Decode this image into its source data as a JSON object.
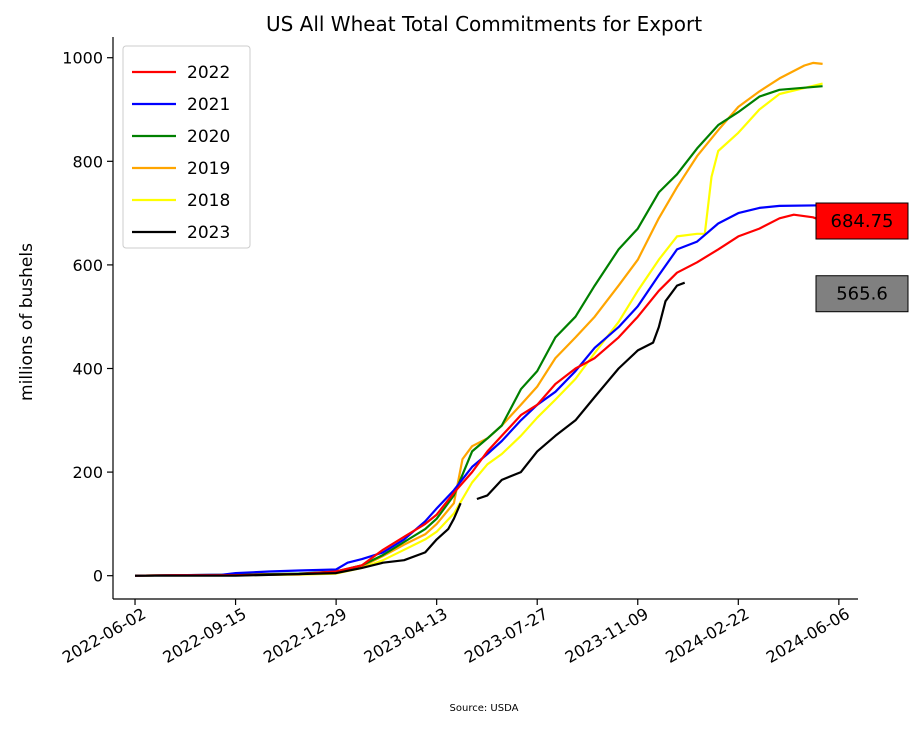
{
  "chart_data": {
    "type": "line",
    "title": "US All Wheat Total Commitments for Export",
    "ylabel": "millions of bushels",
    "xlabel": "",
    "source": "Source: USDA",
    "ylim": [
      -45,
      1040
    ],
    "xlim": [
      "2022-05-10",
      "2024-06-26"
    ],
    "grid": false,
    "legend_position": "top-left",
    "x_ticks": [
      "2022-06-02",
      "2022-09-15",
      "2022-12-29",
      "2023-04-13",
      "2023-07-27",
      "2023-11-09",
      "2024-02-22",
      "2024-06-06"
    ],
    "y_ticks": [
      0,
      200,
      400,
      600,
      800,
      1000
    ],
    "series": [
      {
        "name": "2022",
        "color": "#ff0000",
        "points": [
          [
            "2022-06-02",
            0
          ],
          [
            "2022-07-14",
            1
          ],
          [
            "2022-09-15",
            1
          ],
          [
            "2022-11-20",
            3
          ],
          [
            "2022-12-29",
            8
          ],
          [
            "2023-01-25",
            20
          ],
          [
            "2023-02-16",
            50
          ],
          [
            "2023-03-10",
            75
          ],
          [
            "2023-04-01",
            100
          ],
          [
            "2023-04-13",
            118
          ],
          [
            "2023-05-01",
            160
          ],
          [
            "2023-05-20",
            200
          ],
          [
            "2023-06-05",
            240
          ],
          [
            "2023-06-20",
            270
          ],
          [
            "2023-07-10",
            310
          ],
          [
            "2023-07-27",
            330
          ],
          [
            "2023-08-15",
            370
          ],
          [
            "2023-09-05",
            400
          ],
          [
            "2023-09-25",
            420
          ],
          [
            "2023-10-20",
            460
          ],
          [
            "2023-11-09",
            500
          ],
          [
            "2023-12-01",
            550
          ],
          [
            "2023-12-20",
            585
          ],
          [
            "2024-01-10",
            605
          ],
          [
            "2024-02-01",
            630
          ],
          [
            "2024-02-22",
            655
          ],
          [
            "2024-03-15",
            670
          ],
          [
            "2024-04-05",
            690
          ],
          [
            "2024-04-20",
            697
          ],
          [
            "2024-05-10",
            692
          ],
          [
            "2024-05-20",
            684.75
          ]
        ]
      },
      {
        "name": "2021",
        "color": "#0000ff",
        "points": [
          [
            "2022-06-02",
            0
          ],
          [
            "2022-07-14",
            1
          ],
          [
            "2022-09-01",
            2
          ],
          [
            "2022-09-15",
            5
          ],
          [
            "2022-10-20",
            8
          ],
          [
            "2022-11-20",
            10
          ],
          [
            "2022-12-29",
            12
          ],
          [
            "2023-01-10",
            25
          ],
          [
            "2023-01-25",
            32
          ],
          [
            "2023-02-16",
            45
          ],
          [
            "2023-03-10",
            70
          ],
          [
            "2023-04-01",
            105
          ],
          [
            "2023-04-13",
            130
          ],
          [
            "2023-05-01",
            165
          ],
          [
            "2023-05-20",
            210
          ],
          [
            "2023-06-05",
            235
          ],
          [
            "2023-06-20",
            260
          ],
          [
            "2023-07-10",
            300
          ],
          [
            "2023-07-27",
            330
          ],
          [
            "2023-08-15",
            355
          ],
          [
            "2023-09-05",
            395
          ],
          [
            "2023-09-25",
            440
          ],
          [
            "2023-10-20",
            480
          ],
          [
            "2023-11-09",
            520
          ],
          [
            "2023-12-01",
            580
          ],
          [
            "2023-12-20",
            630
          ],
          [
            "2024-01-10",
            645
          ],
          [
            "2024-02-01",
            680
          ],
          [
            "2024-02-22",
            700
          ],
          [
            "2024-03-15",
            710
          ],
          [
            "2024-04-05",
            714
          ],
          [
            "2024-05-20",
            715
          ]
        ]
      },
      {
        "name": "2020",
        "color": "#008000",
        "points": [
          [
            "2022-06-02",
            0
          ],
          [
            "2022-07-14",
            1
          ],
          [
            "2022-09-15",
            2
          ],
          [
            "2022-11-20",
            4
          ],
          [
            "2022-12-29",
            8
          ],
          [
            "2023-01-25",
            20
          ],
          [
            "2023-02-16",
            40
          ],
          [
            "2023-03-10",
            65
          ],
          [
            "2023-04-01",
            90
          ],
          [
            "2023-04-13",
            110
          ],
          [
            "2023-05-01",
            155
          ],
          [
            "2023-05-20",
            240
          ],
          [
            "2023-06-05",
            265
          ],
          [
            "2023-06-20",
            290
          ],
          [
            "2023-07-10",
            360
          ],
          [
            "2023-07-27",
            395
          ],
          [
            "2023-08-15",
            460
          ],
          [
            "2023-09-05",
            500
          ],
          [
            "2023-09-25",
            560
          ],
          [
            "2023-10-20",
            630
          ],
          [
            "2023-11-09",
            670
          ],
          [
            "2023-12-01",
            740
          ],
          [
            "2023-12-20",
            775
          ],
          [
            "2024-01-10",
            825
          ],
          [
            "2024-02-01",
            870
          ],
          [
            "2024-02-22",
            895
          ],
          [
            "2024-03-15",
            925
          ],
          [
            "2024-04-05",
            938
          ],
          [
            "2024-05-20",
            945
          ]
        ]
      },
      {
        "name": "2019",
        "color": "#ffa500",
        "points": [
          [
            "2022-06-02",
            0
          ],
          [
            "2022-07-14",
            1
          ],
          [
            "2022-09-15",
            2
          ],
          [
            "2022-11-20",
            3
          ],
          [
            "2022-12-29",
            6
          ],
          [
            "2023-01-25",
            18
          ],
          [
            "2023-02-16",
            38
          ],
          [
            "2023-03-10",
            60
          ],
          [
            "2023-04-01",
            80
          ],
          [
            "2023-04-13",
            100
          ],
          [
            "2023-05-01",
            140
          ],
          [
            "2023-05-10",
            225
          ],
          [
            "2023-05-20",
            250
          ],
          [
            "2023-06-05",
            265
          ],
          [
            "2023-06-20",
            290
          ],
          [
            "2023-07-10",
            330
          ],
          [
            "2023-07-27",
            365
          ],
          [
            "2023-08-15",
            420
          ],
          [
            "2023-09-05",
            460
          ],
          [
            "2023-09-25",
            500
          ],
          [
            "2023-10-20",
            560
          ],
          [
            "2023-11-09",
            610
          ],
          [
            "2023-12-01",
            690
          ],
          [
            "2023-12-20",
            750
          ],
          [
            "2024-01-10",
            810
          ],
          [
            "2024-02-01",
            860
          ],
          [
            "2024-02-22",
            905
          ],
          [
            "2024-03-15",
            935
          ],
          [
            "2024-04-05",
            960
          ],
          [
            "2024-05-01",
            985
          ],
          [
            "2024-05-10",
            990
          ],
          [
            "2024-05-20",
            988
          ]
        ]
      },
      {
        "name": "2018",
        "color": "#ffff00",
        "points": [
          [
            "2022-06-02",
            0
          ],
          [
            "2022-07-14",
            1
          ],
          [
            "2022-09-15",
            1
          ],
          [
            "2022-11-20",
            2
          ],
          [
            "2022-12-29",
            4
          ],
          [
            "2023-01-25",
            15
          ],
          [
            "2023-02-16",
            30
          ],
          [
            "2023-03-10",
            50
          ],
          [
            "2023-04-01",
            70
          ],
          [
            "2023-04-13",
            85
          ],
          [
            "2023-05-01",
            120
          ],
          [
            "2023-05-20",
            180
          ],
          [
            "2023-06-05",
            215
          ],
          [
            "2023-06-20",
            235
          ],
          [
            "2023-07-10",
            270
          ],
          [
            "2023-07-27",
            305
          ],
          [
            "2023-08-15",
            340
          ],
          [
            "2023-09-05",
            380
          ],
          [
            "2023-09-25",
            430
          ],
          [
            "2023-10-20",
            490
          ],
          [
            "2023-11-09",
            550
          ],
          [
            "2023-12-01",
            610
          ],
          [
            "2023-12-20",
            655
          ],
          [
            "2024-01-10",
            660
          ],
          [
            "2024-01-18",
            660
          ],
          [
            "2024-01-25",
            770
          ],
          [
            "2024-02-01",
            820
          ],
          [
            "2024-02-22",
            855
          ],
          [
            "2024-03-15",
            900
          ],
          [
            "2024-04-05",
            930
          ],
          [
            "2024-05-20",
            950
          ]
        ]
      },
      {
        "name": "2023",
        "color": "#000000",
        "segments": [
          [
            [
              "2022-06-02",
              0
            ],
            [
              "2022-09-15",
              0
            ],
            [
              "2022-12-29",
              5
            ],
            [
              "2023-01-25",
              15
            ],
            [
              "2023-02-16",
              25
            ],
            [
              "2023-03-10",
              30
            ],
            [
              "2023-04-01",
              45
            ],
            [
              "2023-04-13",
              70
            ],
            [
              "2023-04-25",
              90
            ],
            [
              "2023-05-01",
              110
            ],
            [
              "2023-05-08",
              140
            ]
          ],
          [
            [
              "2023-05-25",
              148
            ],
            [
              "2023-06-05",
              155
            ],
            [
              "2023-06-20",
              185
            ],
            [
              "2023-07-10",
              200
            ],
            [
              "2023-07-27",
              240
            ],
            [
              "2023-08-15",
              270
            ],
            [
              "2023-09-05",
              300
            ],
            [
              "2023-09-25",
              345
            ],
            [
              "2023-10-20",
              400
            ],
            [
              "2023-11-09",
              435
            ],
            [
              "2023-11-25",
              450
            ],
            [
              "2023-12-01",
              480
            ],
            [
              "2023-12-08",
              530
            ],
            [
              "2023-12-20",
              560
            ],
            [
              "2023-12-28",
              565.6
            ]
          ]
        ]
      }
    ],
    "callouts": [
      {
        "text": "684.75",
        "value": 684.75,
        "background": "#ff0000"
      },
      {
        "text": "565.6",
        "value": 565.6,
        "background": "#808080"
      }
    ]
  }
}
